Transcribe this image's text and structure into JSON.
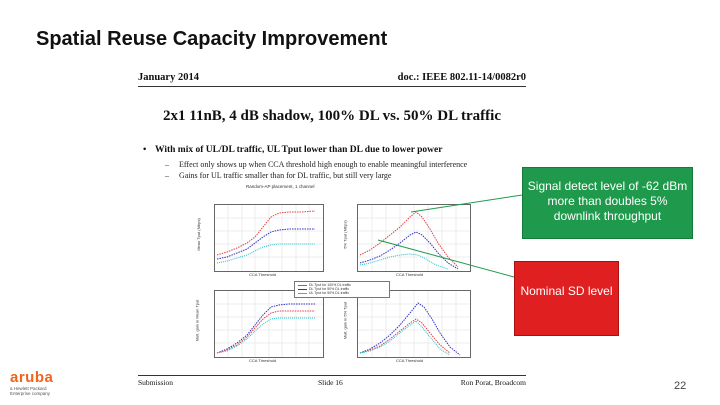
{
  "slide": {
    "title": "Spatial Reuse Capacity Improvement",
    "page_number": "22"
  },
  "document": {
    "date": "January 2014",
    "doc_id": "doc.: IEEE 802.11-14/0082r0",
    "subtitle": "2x1 11nB, 4 dB shadow, 100% DL vs. 50% DL traffic",
    "bullet": "With mix of UL/DL traffic, UL Tput lower than DL due to lower power",
    "sub_bullets": [
      "Effect only shows up when CCA threshold high enough to enable meaningful interference",
      "Gains for UL traffic smaller than for DL traffic, but still very large"
    ],
    "figure_title": "Random-AP placement, 1 channel",
    "footer": {
      "left": "Submission",
      "center": "Slide 16",
      "right": "Ron Porat, Broadcom"
    }
  },
  "legend": [
    {
      "label": "DL Tput for 100% DL traffic",
      "color": "#e04040"
    },
    {
      "label": "DL Tput for 50% DL traffic",
      "color": "#3030c0"
    },
    {
      "label": "UL Tput for 50% DL traffic",
      "color": "#20c0d0"
    }
  ],
  "axis": {
    "x_label": "CCA Threshold",
    "x_ticks": [
      "-90",
      "-85",
      "-80",
      "-75",
      "-70",
      "-65",
      "-60",
      "-55",
      "-50"
    ],
    "top_left_y": "Mean Tput (Mbps)",
    "top_right_y": "5% Tput (Mbps)",
    "bottom_left_y": "Mult. gain in Mean Tput",
    "bottom_right_y": "Mult. gain in 5% Tput"
  },
  "callouts": {
    "green": "Signal detect level of -62 dBm more than doubles 5% downlink throughput",
    "red": "Nominal SD level"
  },
  "logo": {
    "word": "aruba",
    "sub1": "a Hewlett Packard",
    "sub2": "Enterprise company"
  },
  "colors": {
    "green_callout": "#1f9a4c",
    "red_callout": "#e02020",
    "brand": "#f0641e"
  }
}
